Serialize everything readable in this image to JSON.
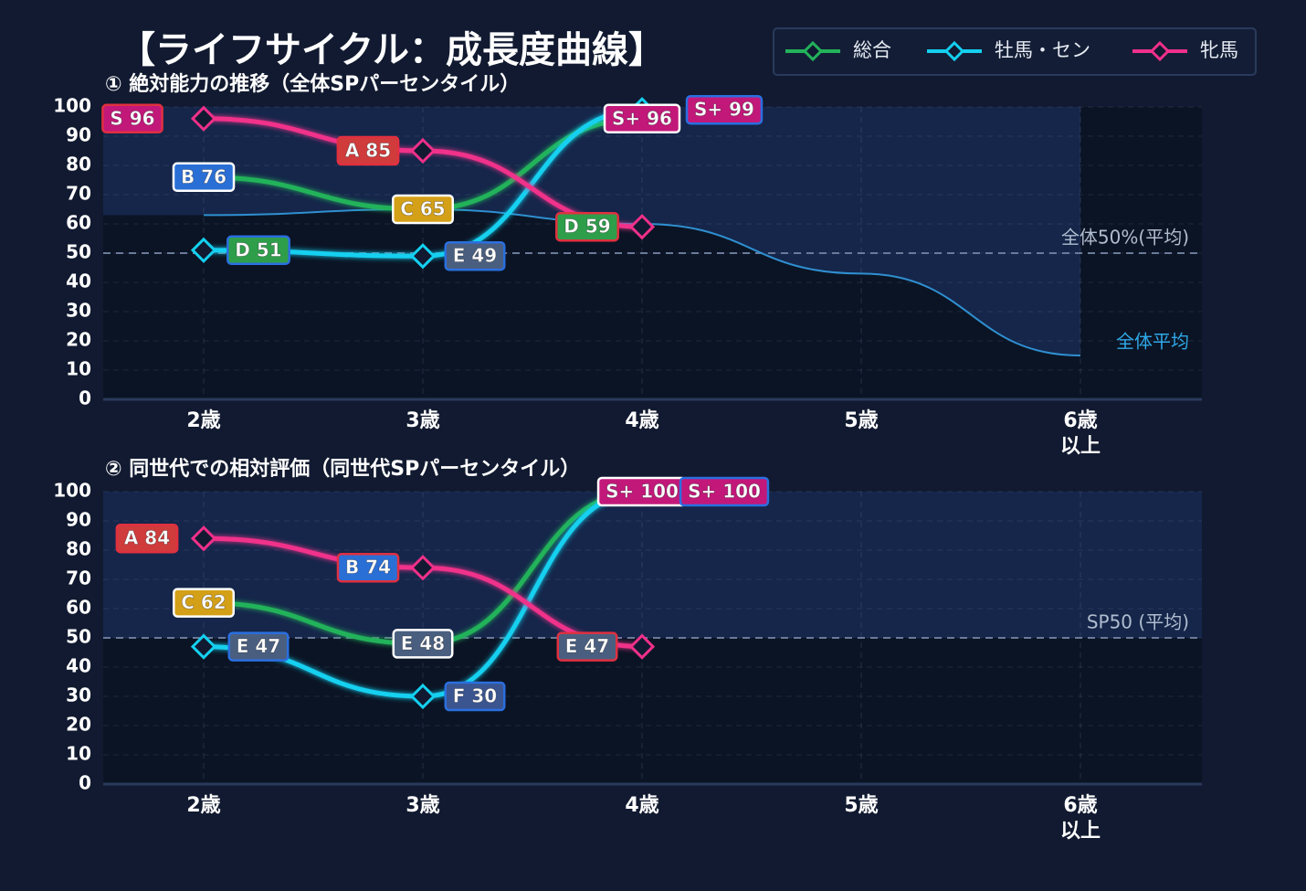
{
  "title": "【ライフサイクル：成長度曲線】",
  "chart_data": [
    {
      "type": "line",
      "subtitle": "① 絶対能力の推移（全体SPパーセンタイル）",
      "categories": [
        "2歳",
        "3歳",
        "4歳",
        "5歳",
        "6歳\n以上"
      ],
      "ylim": [
        0,
        100
      ],
      "yticks": [
        0,
        10,
        20,
        30,
        40,
        50,
        60,
        70,
        80,
        90,
        100
      ],
      "grid": true,
      "reference_line": {
        "value": 50,
        "label": "全体50%(平均)"
      },
      "reference_curve": {
        "name": "全体平均",
        "color": "#2f8fd0",
        "values": [
          63,
          65,
          60,
          43,
          15
        ]
      },
      "series": [
        {
          "name": "総合",
          "color": "#22b35a",
          "label_border": "#ffffff",
          "values": [
            76,
            65,
            96,
            null,
            null
          ],
          "value_labels": [
            "B 76",
            "C 65",
            "S+ 96",
            null,
            null
          ],
          "label_colors": [
            "#2a6fd6",
            "#d4a017",
            "#c2187a",
            null,
            null
          ]
        },
        {
          "name": "牡馬・セン",
          "color": "#14d0f0",
          "label_border": "#2a6fe0",
          "values": [
            51,
            49,
            99,
            null,
            null
          ],
          "value_labels": [
            "D 51",
            "E 49",
            "S+ 99",
            null,
            null
          ],
          "label_colors": [
            "#2e9e4a",
            "#4a5f80",
            "#c2187a",
            null,
            null
          ]
        },
        {
          "name": "牝馬",
          "color": "#f0308a",
          "label_border": "#e03040",
          "values": [
            96,
            85,
            59,
            null,
            null
          ],
          "value_labels": [
            "S 96",
            "A 85",
            "D 59",
            null,
            null
          ],
          "label_colors": [
            "#c2187a",
            "#d03b3b",
            "#2e9e4a",
            null,
            null
          ]
        }
      ]
    },
    {
      "type": "line",
      "subtitle": "② 同世代での相対評価（同世代SPパーセンタイル）",
      "categories": [
        "2歳",
        "3歳",
        "4歳",
        "5歳",
        "6歳\n以上"
      ],
      "ylim": [
        0,
        100
      ],
      "yticks": [
        0,
        10,
        20,
        30,
        40,
        50,
        60,
        70,
        80,
        90,
        100
      ],
      "grid": true,
      "reference_line": {
        "value": 50,
        "label": "SP50 (平均)"
      },
      "series": [
        {
          "color": "#22b35a",
          "label_border": "#ffffff",
          "values": [
            62,
            48,
            100,
            null,
            null
          ],
          "value_labels": [
            "C 62",
            "E 48",
            "S+ 100",
            null,
            null
          ],
          "label_colors": [
            "#d4a017",
            "#4a5f80",
            "#c2187a",
            null,
            null
          ]
        },
        {
          "color": "#14d0f0",
          "label_border": "#2a6fe0",
          "values": [
            47,
            30,
            100,
            null,
            null
          ],
          "value_labels": [
            "E 47",
            "F 30",
            "S+ 100",
            null,
            null
          ],
          "label_colors": [
            "#4a5f80",
            "#3a5590",
            "#c2187a",
            null,
            null
          ]
        },
        {
          "color": "#f0308a",
          "label_border": "#e03040",
          "values": [
            84,
            74,
            47,
            null,
            null
          ],
          "value_labels": [
            "A 84",
            "B 74",
            "E 47",
            null,
            null
          ],
          "label_colors": [
            "#d03b3b",
            "#2a6fd6",
            "#4a5f80",
            null,
            null
          ]
        }
      ]
    }
  ]
}
